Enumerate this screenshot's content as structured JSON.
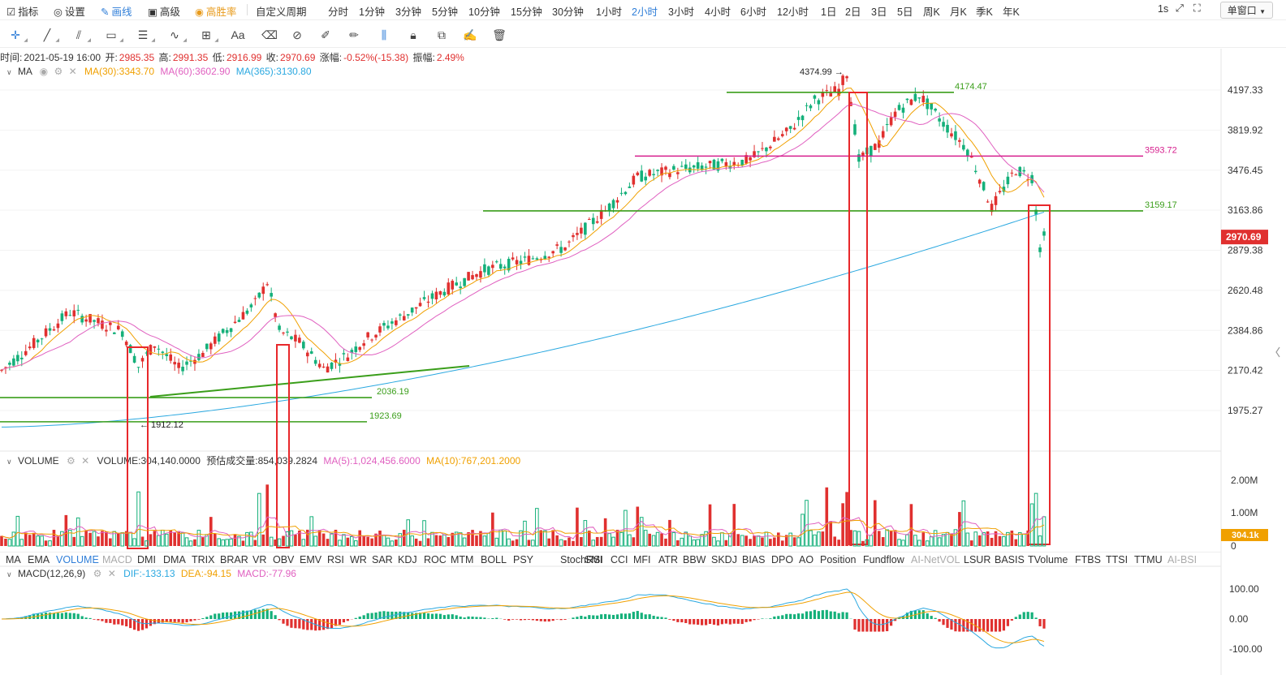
{
  "toolbar": {
    "items": [
      {
        "label": "指标",
        "icon": "indicator-icon",
        "style": ""
      },
      {
        "label": "设置",
        "icon": "settings-icon",
        "style": ""
      },
      {
        "label": "画线",
        "icon": "pen-icon",
        "style": "blue"
      },
      {
        "label": "高级",
        "icon": "advanced-icon",
        "style": ""
      },
      {
        "label": "高胜率",
        "icon": "target-icon",
        "style": "orange"
      }
    ],
    "custom_period": "自定义周期",
    "periods": [
      "分时",
      "1分钟",
      "3分钟",
      "5分钟",
      "10分钟",
      "15分钟",
      "30分钟",
      "1小时",
      "2小时",
      "3小时",
      "4小时",
      "6小时",
      "12小时",
      "1日",
      "2日",
      "3日",
      "5日",
      "周K",
      "月K",
      "季K",
      "年K"
    ],
    "active_period": "2小时",
    "right_interval": "1s",
    "window_mode": "单窗口"
  },
  "drawing_tools": [
    "crosshair-icon",
    "line-icon",
    "parallel-line-icon",
    "rectangle-icon",
    "horizontal-lines-icon",
    "wave-icon",
    "measure-icon",
    "text-icon",
    "eraser-icon",
    "magnet-icon",
    "ruler-icon",
    "brush-icon",
    "candle-pattern-icon",
    "lock-icon",
    "copy-icon",
    "edit-icon",
    "trash-icon"
  ],
  "ohlc": {
    "time_label": "时间:",
    "time": "2021-05-19 16:00",
    "open_label": "开:",
    "open": "2985.35",
    "high_label": "高:",
    "high": "2991.35",
    "low_label": "低:",
    "low": "2916.99",
    "close_label": "收:",
    "close": "2970.69",
    "change_label": "涨幅:",
    "change": "-0.52%(-15.38)",
    "amp_label": "振幅:",
    "amp": "2.49%"
  },
  "ma_legend": {
    "name": "MA",
    "ma30": "MA(30):3343.70",
    "ma60": "MA(60):3602.90",
    "ma365": "MA(365):3130.80"
  },
  "volume_legend": {
    "name": "VOLUME",
    "vol": "VOLUME:304,140.0000",
    "est": "预估成交量:854,039.2824",
    "ma5": "MA(5):1,024,456.6000",
    "ma10": "MA(10):767,201.2000"
  },
  "macd_legend": {
    "name": "MACD(12,26,9)",
    "dif": "DIF:-133.13",
    "dea": "DEA:-94.15",
    "macd": "MACD:-77.96"
  },
  "indicator_tabs": [
    "MA",
    "EMA",
    "VOLUME",
    "MACD",
    "DMI",
    "DMA",
    "TRIX",
    "BRAR",
    "VR",
    "OBV",
    "EMV",
    "RSI",
    "WR",
    "SAR",
    "KDJ",
    "ROC",
    "MTM",
    "BOLL",
    "PSY",
    "StochRSI",
    "SMI",
    "CCI",
    "MFI",
    "ATR",
    "BBW",
    "SKDJ",
    "BIAS",
    "DPO",
    "AO",
    "Position",
    "Fundflow",
    "AI-NetVOL",
    "LSUR",
    "BASIS",
    "TVolume",
    "FTBS",
    "TTSI",
    "TTMU",
    "AI-BSI"
  ],
  "indicator_tabs_active": [
    "VOLUME"
  ],
  "indicator_tabs_dim": [
    "MACD",
    "AI-NetVOL",
    "AI-BSI"
  ],
  "colors": {
    "up": "#e0302f",
    "down": "#14b07a",
    "ma30": "#f0a000",
    "ma60": "#e060c0",
    "ma365": "#2aa8e0",
    "green_line": "#3a9e1a",
    "magenta_line": "#d61f8e",
    "box": "#e8282b"
  },
  "chart_data": [
    {
      "type": "candlestick",
      "title": "",
      "y_axis_ticks": [
        "4197.33",
        "3819.92",
        "3476.45",
        "3163.86",
        "2879.38",
        "2620.48",
        "2384.86",
        "2170.42",
        "1975.27"
      ],
      "current_price": "2970.69",
      "annotations": {
        "high": "4374.99",
        "low": "1912.12",
        "levels": [
          "4174.47",
          "3593.72",
          "3159.17",
          "2036.19",
          "1923.69"
        ]
      },
      "series": [
        {
          "name": "MA(30)"
        },
        {
          "name": "MA(60)"
        },
        {
          "name": "MA(365)"
        }
      ]
    },
    {
      "type": "bar",
      "y_axis_ticks": [
        "2.00M",
        "1.00M",
        "0"
      ],
      "current_value": "304.1k"
    },
    {
      "type": "bar",
      "y_axis_ticks": [
        "100.00",
        "0.00",
        "-100.00"
      ]
    }
  ]
}
